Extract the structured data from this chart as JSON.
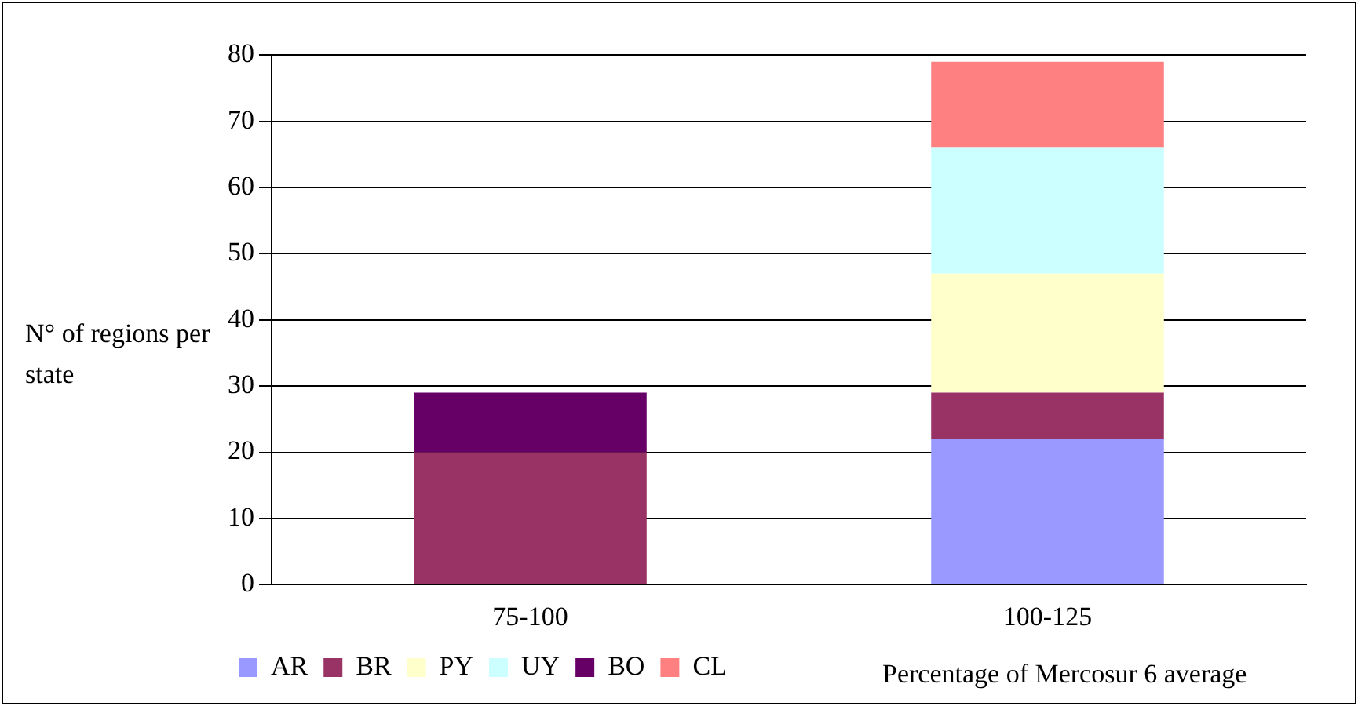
{
  "chart_data": {
    "type": "bar",
    "stacked": true,
    "xlabel": "Percentage of Mercosur 6 average",
    "ylabel": "N° of regions per state",
    "categories": [
      "75-100",
      "100-125"
    ],
    "series": [
      {
        "name": "AR",
        "color": "#9999ff",
        "values": [
          null,
          22
        ]
      },
      {
        "name": "BR",
        "color": "#993366",
        "values": [
          20,
          7
        ]
      },
      {
        "name": "PY",
        "color": "#ffffcc",
        "values": [
          null,
          18
        ]
      },
      {
        "name": "UY",
        "color": "#ccffff",
        "values": [
          null,
          19
        ]
      },
      {
        "name": "BO",
        "color": "#660066",
        "values": [
          9,
          null
        ]
      },
      {
        "name": "CL",
        "color": "#ff8080",
        "values": [
          null,
          13
        ]
      }
    ],
    "ylim": [
      0,
      80
    ],
    "yticks": [
      0,
      10,
      20,
      30,
      40,
      50,
      60,
      70,
      80
    ],
    "grid": "y",
    "legend": "bottom left"
  }
}
